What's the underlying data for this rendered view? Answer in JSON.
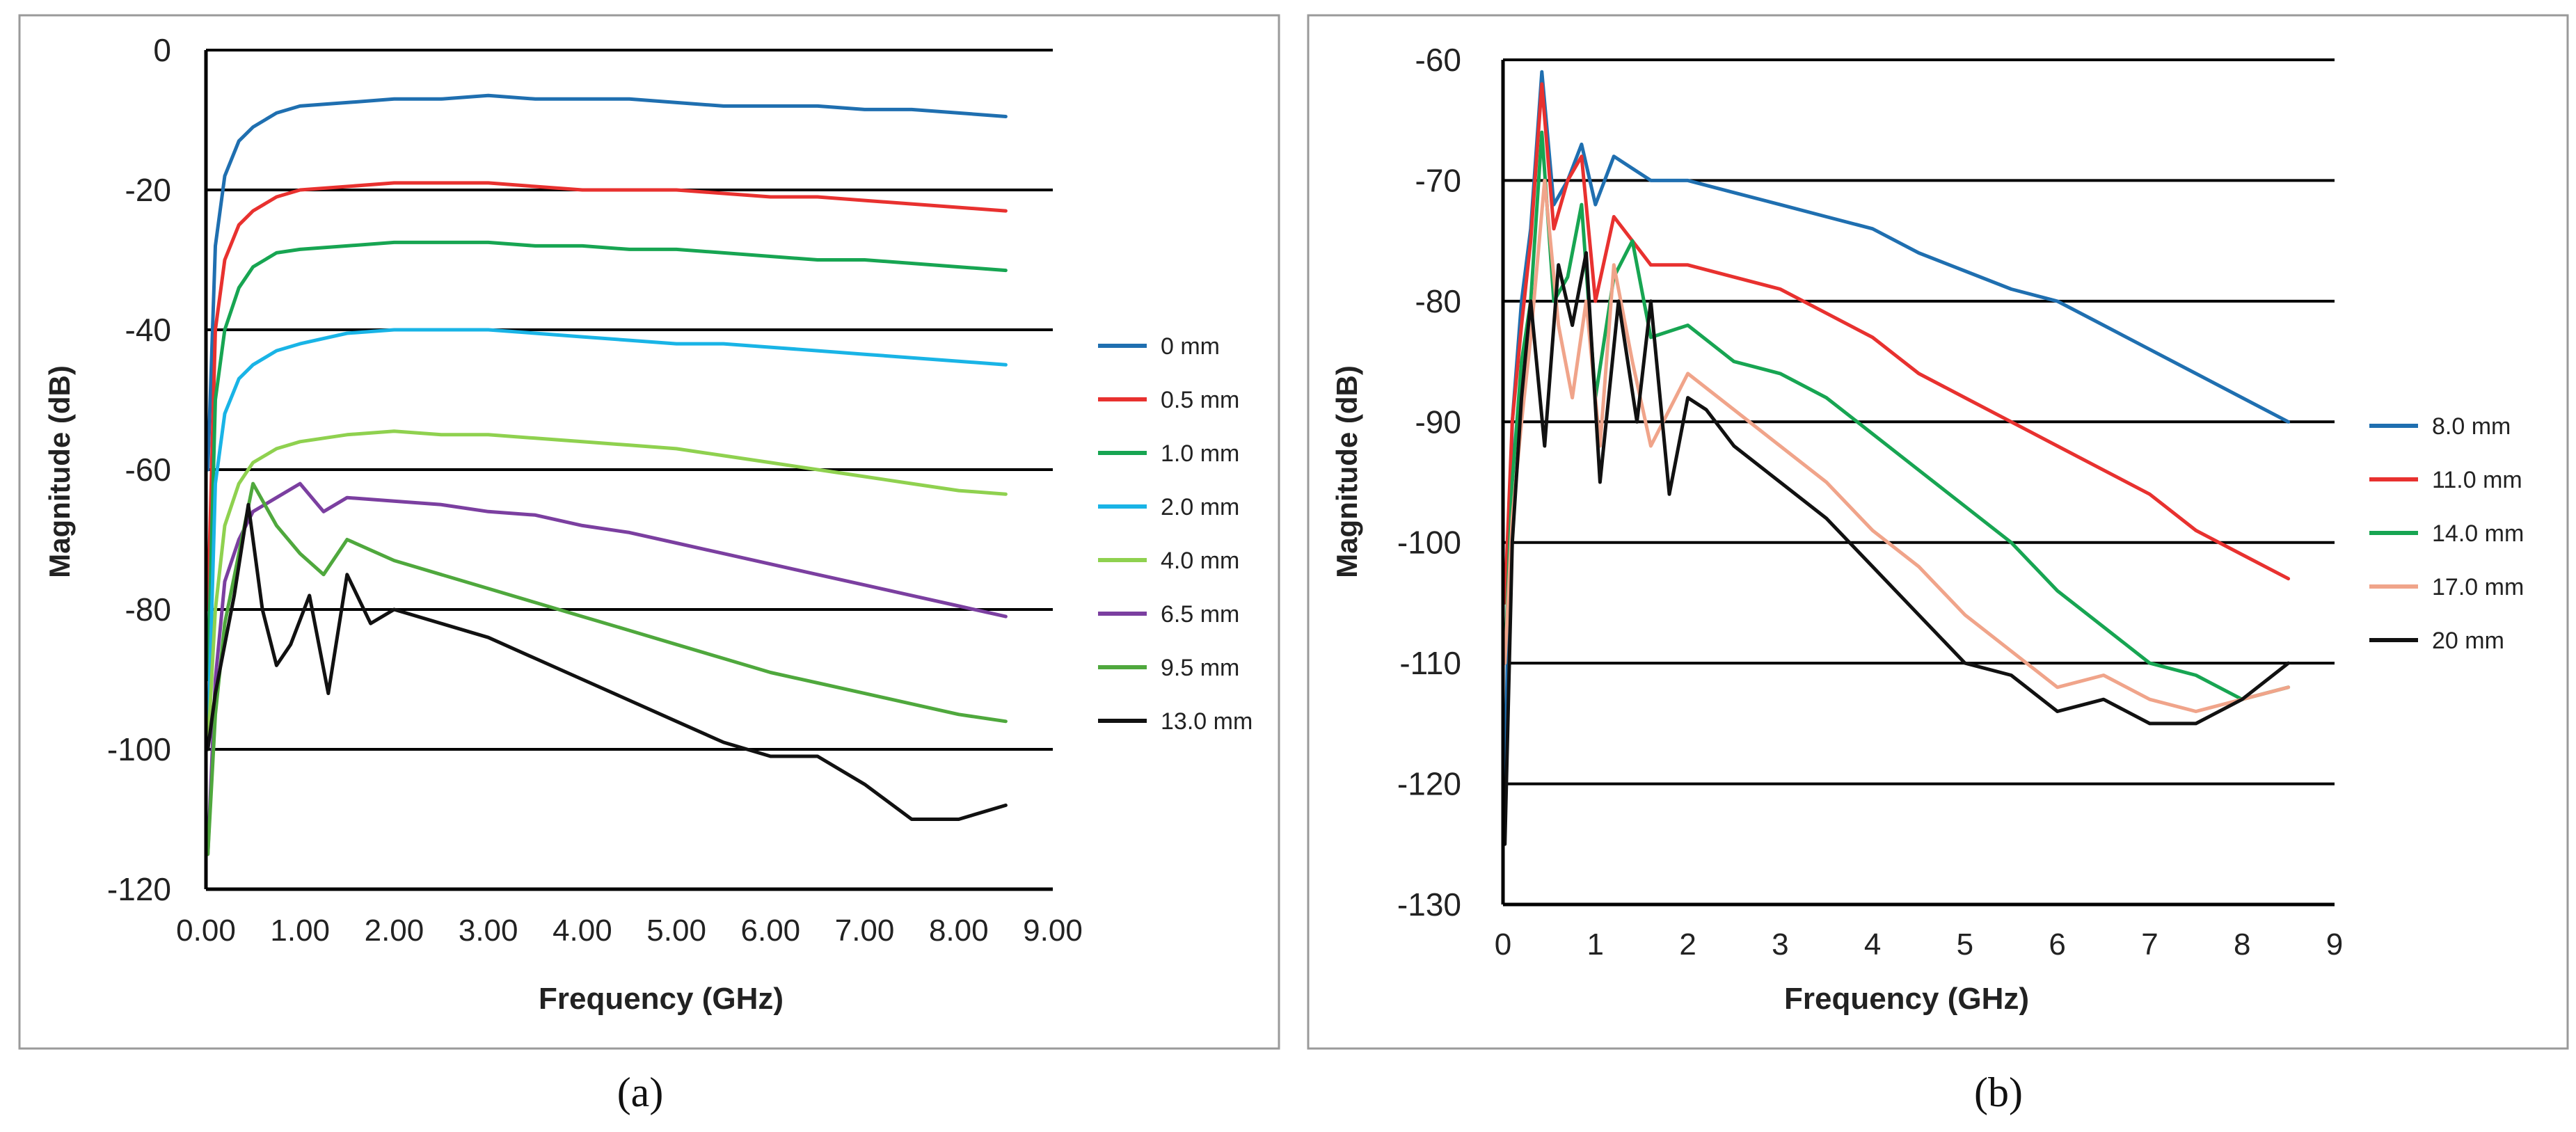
{
  "figure": {
    "panel_a_label": "(a)",
    "panel_b_label": "(b)"
  },
  "chart_data": [
    {
      "type": "line",
      "panel": "(a)",
      "title": "",
      "xlabel": "Frequency (GHz)",
      "ylabel": "Magnitude (dB)",
      "xlim": [
        0,
        9
      ],
      "ylim": [
        -120,
        0
      ],
      "xticks": [
        0,
        1,
        2,
        3,
        4,
        5,
        6,
        7,
        8,
        9
      ],
      "xtick_labels": [
        "0.00",
        "1.00",
        "2.00",
        "3.00",
        "4.00",
        "5.00",
        "6.00",
        "7.00",
        "8.00",
        "9.00"
      ],
      "yticks": [
        0,
        -20,
        -40,
        -60,
        -80,
        -100,
        -120
      ],
      "ytick_labels": [
        "0",
        "-20",
        "-40",
        "-60",
        "-80",
        "-100",
        "-120"
      ],
      "gridlines_y": [
        0,
        -20,
        -40,
        -60,
        -80,
        -100
      ],
      "legend_position": "right",
      "series": [
        {
          "name": "0 mm",
          "color": "#1f6fb0",
          "x": [
            0.02,
            0.1,
            0.2,
            0.35,
            0.5,
            0.75,
            1.0,
            1.5,
            2.0,
            2.5,
            3.0,
            3.5,
            4.0,
            4.5,
            5.0,
            5.5,
            6.0,
            6.5,
            7.0,
            7.5,
            8.0,
            8.5
          ],
          "y": [
            -60,
            -28,
            -18,
            -13,
            -11,
            -9,
            -8,
            -7.5,
            -7,
            -7,
            -6.5,
            -7,
            -7,
            -7,
            -7.5,
            -8,
            -8,
            -8,
            -8.5,
            -8.5,
            -9,
            -9.5
          ]
        },
        {
          "name": "0.5 mm",
          "color": "#e8312f",
          "x": [
            0.02,
            0.1,
            0.2,
            0.35,
            0.5,
            0.75,
            1.0,
            1.5,
            2.0,
            2.5,
            3.0,
            3.5,
            4.0,
            4.5,
            5.0,
            5.5,
            6.0,
            6.5,
            7.0,
            7.5,
            8.0,
            8.5
          ],
          "y": [
            -80,
            -40,
            -30,
            -25,
            -23,
            -21,
            -20,
            -19.5,
            -19,
            -19,
            -19,
            -19.5,
            -20,
            -20,
            -20,
            -20.5,
            -21,
            -21,
            -21.5,
            -22,
            -22.5,
            -23
          ]
        },
        {
          "name": "1.0 mm",
          "color": "#17a552",
          "x": [
            0.02,
            0.1,
            0.2,
            0.35,
            0.5,
            0.75,
            1.0,
            1.5,
            2.0,
            2.5,
            3.0,
            3.5,
            4.0,
            4.5,
            5.0,
            5.5,
            6.0,
            6.5,
            7.0,
            7.5,
            8.0,
            8.5
          ],
          "y": [
            -90,
            -50,
            -40,
            -34,
            -31,
            -29,
            -28.5,
            -28,
            -27.5,
            -27.5,
            -27.5,
            -28,
            -28,
            -28.5,
            -28.5,
            -29,
            -29.5,
            -30,
            -30,
            -30.5,
            -31,
            -31.5
          ]
        },
        {
          "name": "2.0 mm",
          "color": "#19b4e6",
          "x": [
            0.02,
            0.1,
            0.2,
            0.35,
            0.5,
            0.75,
            1.0,
            1.5,
            2.0,
            2.5,
            3.0,
            3.5,
            4.0,
            4.5,
            5.0,
            5.5,
            6.0,
            6.5,
            7.0,
            7.5,
            8.0,
            8.5
          ],
          "y": [
            -100,
            -62,
            -52,
            -47,
            -45,
            -43,
            -42,
            -40.5,
            -40,
            -40,
            -40,
            -40.5,
            -41,
            -41.5,
            -42,
            -42,
            -42.5,
            -43,
            -43.5,
            -44,
            -44.5,
            -45
          ]
        },
        {
          "name": "4.0 mm",
          "color": "#8fd14f",
          "x": [
            0.02,
            0.1,
            0.2,
            0.35,
            0.5,
            0.75,
            1.0,
            1.5,
            2.0,
            2.5,
            3.0,
            3.5,
            4.0,
            4.5,
            5.0,
            5.5,
            6.0,
            6.5,
            7.0,
            7.5,
            8.0,
            8.5
          ],
          "y": [
            -100,
            -80,
            -68,
            -62,
            -59,
            -57,
            -56,
            -55,
            -54.5,
            -55,
            -55,
            -55.5,
            -56,
            -56.5,
            -57,
            -58,
            -59,
            -60,
            -61,
            -62,
            -63,
            -63.5
          ]
        },
        {
          "name": "6.5 mm",
          "color": "#7b3fa0",
          "x": [
            0.02,
            0.1,
            0.2,
            0.35,
            0.5,
            0.75,
            1.0,
            1.25,
            1.5,
            2.0,
            2.5,
            3.0,
            3.5,
            4.0,
            4.5,
            5.0,
            5.5,
            6.0,
            6.5,
            7.0,
            7.5,
            8.0,
            8.5
          ],
          "y": [
            -115,
            -90,
            -76,
            -70,
            -66,
            -64,
            -62,
            -66,
            -64,
            -64.5,
            -65,
            -66,
            -66.5,
            -68,
            -69,
            -70.5,
            -72,
            -73.5,
            -75,
            -76.5,
            -78,
            -79.5,
            -81
          ]
        },
        {
          "name": "9.5 mm",
          "color": "#4fa83d",
          "x": [
            0.02,
            0.1,
            0.2,
            0.35,
            0.5,
            0.75,
            1.0,
            1.25,
            1.5,
            2.0,
            2.5,
            3.0,
            3.5,
            4.0,
            4.5,
            5.0,
            5.5,
            6.0,
            6.5,
            7.0,
            7.5,
            8.0,
            8.5
          ],
          "y": [
            -115,
            -95,
            -82,
            -72,
            -62,
            -68,
            -72,
            -75,
            -70,
            -73,
            -75,
            -77,
            -79,
            -81,
            -83,
            -85,
            -87,
            -89,
            -90.5,
            -92,
            -93.5,
            -95,
            -96
          ]
        },
        {
          "name": "13.0 mm",
          "color": "#111111",
          "x": [
            0.02,
            0.1,
            0.2,
            0.3,
            0.45,
            0.6,
            0.75,
            0.9,
            1.1,
            1.3,
            1.5,
            1.75,
            2.0,
            2.5,
            3.0,
            3.5,
            4.0,
            4.5,
            5.0,
            5.5,
            6.0,
            6.5,
            7.0,
            7.5,
            8.0,
            8.5
          ],
          "y": [
            -100,
            -92,
            -85,
            -78,
            -65,
            -80,
            -88,
            -85,
            -78,
            -92,
            -75,
            -82,
            -80,
            -82,
            -84,
            -87,
            -90,
            -93,
            -96,
            -99,
            -101,
            -101,
            -105,
            -110,
            -110,
            -108
          ]
        }
      ]
    },
    {
      "type": "line",
      "panel": "(b)",
      "title": "",
      "xlabel": "Frequency (GHz)",
      "ylabel": "Magnitude (dB)",
      "xlim": [
        0,
        9
      ],
      "ylim": [
        -130,
        -60
      ],
      "xticks": [
        0,
        1,
        2,
        3,
        4,
        5,
        6,
        7,
        8,
        9
      ],
      "xtick_labels": [
        "0",
        "1",
        "2",
        "3",
        "4",
        "5",
        "6",
        "7",
        "8",
        "9"
      ],
      "yticks": [
        -60,
        -70,
        -80,
        -90,
        -100,
        -110,
        -120,
        -130
      ],
      "ytick_labels": [
        "-60",
        "-70",
        "-80",
        "-90",
        "-100",
        "-110",
        "-120",
        "-130"
      ],
      "gridlines_y": [
        -60,
        -70,
        -80,
        -90,
        -100,
        -110,
        -120
      ],
      "legend_position": "right",
      "series": [
        {
          "name": "8.0 mm",
          "color": "#1f6fb0",
          "x": [
            0.02,
            0.1,
            0.2,
            0.3,
            0.42,
            0.55,
            0.7,
            0.85,
            1.0,
            1.2,
            1.4,
            1.6,
            2.0,
            2.5,
            3.0,
            3.5,
            4.0,
            4.5,
            5.0,
            5.5,
            6.0,
            6.5,
            7.0,
            7.5,
            8.0,
            8.5
          ],
          "y": [
            -120,
            -90,
            -80,
            -74,
            -61,
            -72,
            -70,
            -67,
            -72,
            -68,
            -69,
            -70,
            -70,
            -71,
            -72,
            -73,
            -74,
            -76,
            -77.5,
            -79,
            -80,
            -82,
            -84,
            -86,
            -88,
            -90
          ]
        },
        {
          "name": "11.0 mm",
          "color": "#e8312f",
          "x": [
            0.02,
            0.1,
            0.2,
            0.3,
            0.42,
            0.55,
            0.7,
            0.85,
            1.0,
            1.2,
            1.4,
            1.6,
            2.0,
            2.5,
            3.0,
            3.5,
            4.0,
            4.5,
            5.0,
            5.5,
            6.0,
            6.5,
            7.0,
            7.5,
            8.0,
            8.5
          ],
          "y": [
            -105,
            -90,
            -82,
            -75,
            -62,
            -74,
            -70,
            -68,
            -80,
            -73,
            -75,
            -77,
            -77,
            -78,
            -79,
            -81,
            -83,
            -86,
            -88,
            -90,
            -92,
            -94,
            -96,
            -99,
            -101,
            -103
          ]
        },
        {
          "name": "14.0 mm",
          "color": "#17a552",
          "x": [
            0.02,
            0.1,
            0.2,
            0.3,
            0.42,
            0.55,
            0.7,
            0.85,
            1.0,
            1.2,
            1.4,
            1.6,
            2.0,
            2.5,
            3.0,
            3.5,
            4.0,
            4.5,
            5.0,
            5.5,
            6.0,
            6.5,
            7.0,
            7.5,
            8.0,
            8.5
          ],
          "y": [
            -110,
            -95,
            -85,
            -80,
            -66,
            -80,
            -78,
            -72,
            -88,
            -78,
            -75,
            -83,
            -82,
            -85,
            -86,
            -88,
            -91,
            -94,
            -97,
            -100,
            -104,
            -107,
            -110,
            -111,
            -113,
            -112
          ]
        },
        {
          "name": "17.0 mm",
          "color": "#f0a48a",
          "x": [
            0.02,
            0.1,
            0.2,
            0.3,
            0.45,
            0.6,
            0.75,
            0.9,
            1.05,
            1.2,
            1.4,
            1.6,
            2.0,
            2.5,
            3.0,
            3.5,
            4.0,
            4.5,
            5.0,
            5.5,
            6.0,
            6.5,
            7.0,
            7.5,
            8.0,
            8.5
          ],
          "y": [
            -110,
            -98,
            -90,
            -83,
            -70,
            -82,
            -88,
            -80,
            -92,
            -77,
            -85,
            -92,
            -86,
            -89,
            -92,
            -95,
            -99,
            -102,
            -106,
            -109,
            -112,
            -111,
            -113,
            -114,
            -113,
            -112
          ]
        },
        {
          "name": "20 mm",
          "color": "#111111",
          "x": [
            0.02,
            0.1,
            0.2,
            0.3,
            0.45,
            0.6,
            0.75,
            0.9,
            1.05,
            1.25,
            1.45,
            1.6,
            1.8,
            2.0,
            2.2,
            2.5,
            3.0,
            3.5,
            4.0,
            4.5,
            5.0,
            5.5,
            6.0,
            6.5,
            7.0,
            7.5,
            8.0,
            8.5
          ],
          "y": [
            -125,
            -100,
            -88,
            -80,
            -92,
            -77,
            -82,
            -76,
            -95,
            -80,
            -90,
            -80,
            -96,
            -88,
            -89,
            -92,
            -95,
            -98,
            -102,
            -106,
            -110,
            -111,
            -114,
            -113,
            -115,
            -115,
            -113,
            -110
          ]
        }
      ]
    }
  ]
}
